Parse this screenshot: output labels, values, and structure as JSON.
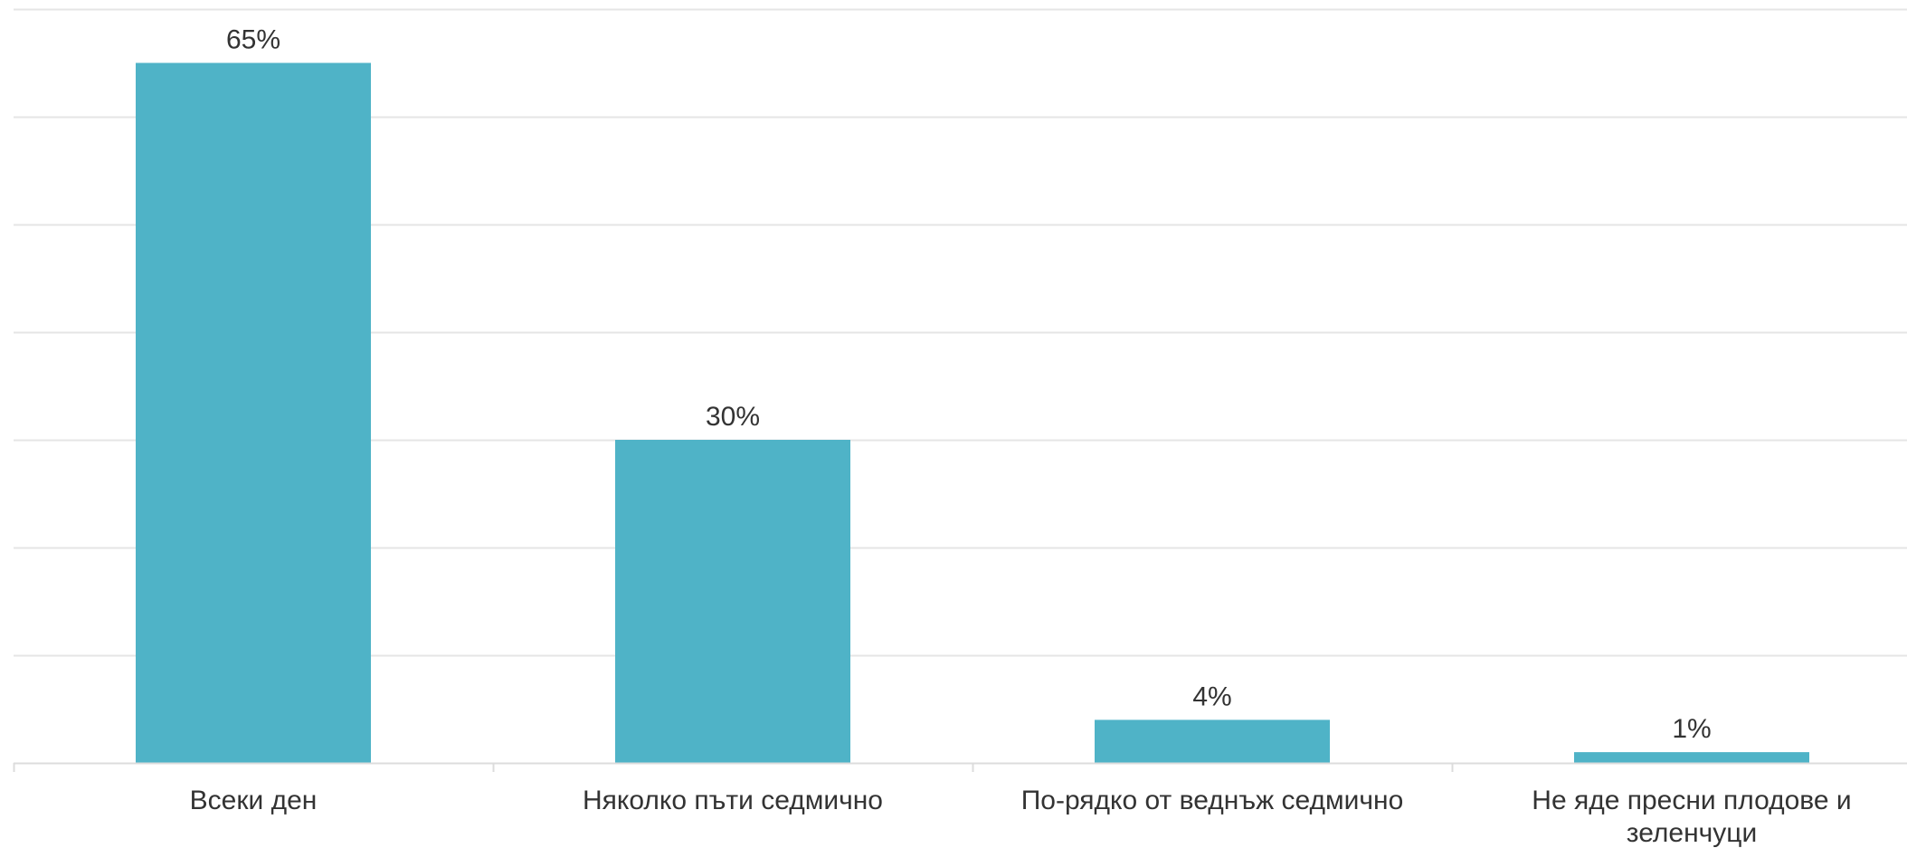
{
  "chart_data": {
    "type": "bar",
    "categories": [
      "Всеки ден",
      "Няколко пъти седмично",
      "По-рядко от веднъж седмично",
      "Не яде пресни плодове и зеленчуци"
    ],
    "values": [
      65,
      30,
      4,
      1
    ],
    "value_labels": [
      "65%",
      "30%",
      "4%",
      "1%"
    ],
    "ylim": [
      0,
      70
    ],
    "grid": true,
    "bar_color": "#4fb3c7",
    "gridline_color": "#e5e5e5",
    "text_color": "#333333"
  }
}
